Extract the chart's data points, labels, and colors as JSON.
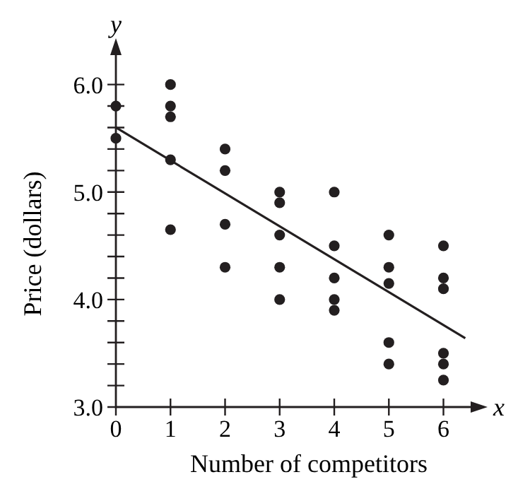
{
  "chart_data": {
    "type": "scatter",
    "xlabel": "Number of competitors",
    "ylabel": "Price (dollars)",
    "annotations": [
      "x",
      "y"
    ],
    "xlim": [
      0,
      6.55
    ],
    "ylim": [
      3,
      6.3
    ],
    "xticks": [
      0,
      1,
      2,
      3,
      4,
      5,
      6
    ],
    "yticks": [
      {
        "value": 3,
        "label": "3.0"
      },
      {
        "value": 3.2,
        "label": null
      },
      {
        "value": 3.4,
        "label": null
      },
      {
        "value": 3.6,
        "label": null
      },
      {
        "value": 3.8,
        "label": null
      },
      {
        "value": 4,
        "label": "4.0"
      },
      {
        "value": 4.2,
        "label": null
      },
      {
        "value": 4.4,
        "label": null
      },
      {
        "value": 4.6,
        "label": null
      },
      {
        "value": 4.8,
        "label": null
      },
      {
        "value": 5,
        "label": "5.0"
      },
      {
        "value": 5.2,
        "label": null
      },
      {
        "value": 5.4,
        "label": null
      },
      {
        "value": 5.6,
        "label": null
      },
      {
        "value": 5.8,
        "label": null
      },
      {
        "value": 6,
        "label": "6.0"
      }
    ],
    "grid": false,
    "series": [
      {
        "marker": "circle",
        "color": "#231f20",
        "x": [
          0,
          0,
          1,
          1,
          1,
          1,
          1,
          2,
          2,
          2,
          2,
          3,
          3,
          3,
          3,
          3,
          4,
          4,
          4,
          4,
          4,
          5,
          5,
          5,
          5,
          5,
          6,
          6,
          6,
          6,
          6,
          6
        ],
        "values": [
          5.8,
          5.5,
          6.0,
          5.8,
          5.7,
          5.3,
          4.65,
          5.4,
          5.2,
          4.7,
          4.3,
          5.0,
          4.9,
          4.6,
          4.3,
          4.0,
          5.0,
          4.5,
          4.2,
          4.0,
          3.9,
          4.6,
          4.3,
          4.15,
          3.6,
          3.4,
          4.5,
          4.2,
          4.1,
          3.5,
          3.4,
          3.25
        ]
      },
      {
        "type": "line",
        "color": "#231f20",
        "line_style": "solid",
        "x": [
          0,
          6.4
        ],
        "values": [
          5.6,
          3.64
        ]
      }
    ]
  }
}
